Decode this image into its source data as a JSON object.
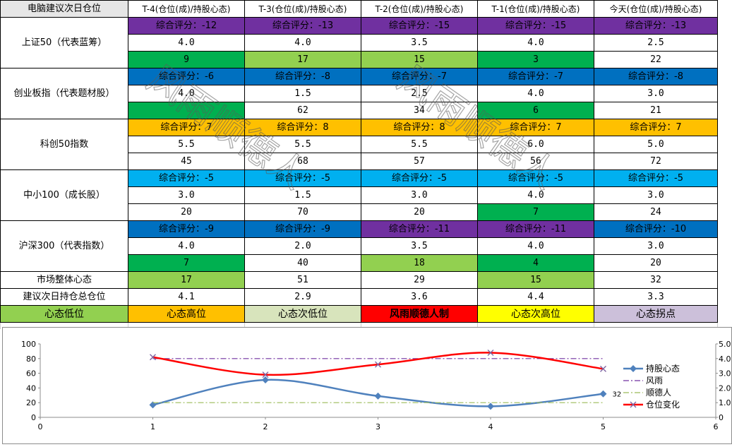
{
  "colors": {
    "purple": "#7030a0",
    "darkblue": "#0070c0",
    "orange": "#ffc000",
    "lightblue": "#00b0f0",
    "green": "#00b050",
    "lightgreen": "#92d050",
    "red": "#ff0000",
    "yellow": "#ffff00",
    "pale_green": "#d8e4bc",
    "lavender": "#ccc0da"
  },
  "header": {
    "corner": "电脑建议次日仓位",
    "columns": [
      "T-4(仓位(成)/持股心态)",
      "T-3(仓位(成)/持股心态)",
      "T-2(仓位(成)/持股心态)",
      "T-1(仓位(成)/持股心态)",
      "今天(仓位(成)/持股心态)"
    ]
  },
  "indices": [
    {
      "name": "上证50（代表蓝筹）",
      "score_color": "purple",
      "scores": [
        "综合评分：-12",
        "综合评分：-13",
        "综合评分：-15",
        "综合评分：-15",
        "综合评分：-13"
      ],
      "positions": [
        "4.0",
        "4.0",
        "3.5",
        "4.0",
        "2.5"
      ],
      "moods": [
        "9",
        "17",
        "15",
        "3",
        "22"
      ],
      "mood_colors": [
        "green",
        "lightgreen",
        "lightgreen",
        "green",
        "white"
      ]
    },
    {
      "name": "创业板指（代表题材股）",
      "score_color": "darkblue",
      "scores": [
        "综合评分：-6",
        "综合评分：-8",
        "综合评分：-7",
        "综合评分：-7",
        "综合评分：-8"
      ],
      "positions": [
        "4.0",
        "1.5",
        "2.5",
        "4.0",
        "3.0"
      ],
      "moods": [
        "",
        "62",
        "34",
        "6",
        "21"
      ],
      "mood_colors": [
        "green",
        "white",
        "white",
        "green",
        "white"
      ]
    },
    {
      "name": "科创50指数",
      "score_color": "orange",
      "scores": [
        "综合评分：7",
        "综合评分：8",
        "综合评分：8",
        "综合评分：7",
        "综合评分：7"
      ],
      "positions": [
        "5.5",
        "5.5",
        "5.5",
        "6.0",
        "5.0"
      ],
      "moods": [
        "45",
        "68",
        "57",
        "56",
        "72"
      ],
      "mood_colors": [
        "white",
        "white",
        "white",
        "white",
        "white"
      ]
    },
    {
      "name": "中小100（成长股）",
      "score_color": "lightblue",
      "scores": [
        "综合评分：-5",
        "综合评分：-5",
        "综合评分：-5",
        "综合评分：-5",
        "综合评分：-5"
      ],
      "positions": [
        "3.0",
        "1.5",
        "3.0",
        "4.0",
        "3.0"
      ],
      "moods": [
        "20",
        "70",
        "20",
        "7",
        "24"
      ],
      "mood_colors": [
        "white",
        "white",
        "white",
        "green",
        "white"
      ]
    },
    {
      "name": "沪深300（代表指数）",
      "score_color": "darkblue",
      "scores": [
        "综合评分：-9",
        "综合评分：-9",
        "综合评分：-11",
        "综合评分：-11",
        "综合评分：-10"
      ],
      "score_colors": [
        "darkblue",
        "darkblue",
        "purple",
        "purple",
        "darkblue"
      ],
      "positions": [
        "4.0",
        "2.0",
        "3.5",
        "4.0",
        "3.0"
      ],
      "moods": [
        "7",
        "40",
        "18",
        "4",
        "20"
      ],
      "mood_colors": [
        "green",
        "white",
        "lightgreen",
        "green",
        "white"
      ]
    }
  ],
  "market": {
    "label": "市场整体心态",
    "values": [
      "17",
      "51",
      "29",
      "15",
      "32"
    ],
    "colors": [
      "lightgreen",
      "white",
      "white",
      "lightgreen",
      "white"
    ]
  },
  "suggest": {
    "label": "建议次日持仓总仓位",
    "values": [
      "4.1",
      "2.9",
      "3.6",
      "4.4",
      "3.3"
    ]
  },
  "legend_row": [
    {
      "text": "心态低位",
      "color": "lightgreen",
      "bold": false
    },
    {
      "text": "心态高位",
      "color": "orange",
      "bold": false
    },
    {
      "text": "心态次低位",
      "color": "pale_green",
      "bold": false
    },
    {
      "text": "风雨顺德人制",
      "color": "red",
      "bold": true
    },
    {
      "text": "心态次高位",
      "color": "yellow",
      "bold": false
    },
    {
      "text": "心态拐点",
      "color": "lavender",
      "bold": false
    }
  ],
  "watermark": {
    "left": "风雨顺德人",
    "right": "风雨顺德人"
  },
  "chart_data": {
    "type": "line",
    "x": [
      1,
      2,
      3,
      4,
      5
    ],
    "xlim": [
      0,
      6
    ],
    "x_ticks": [
      "0",
      "1",
      "2",
      "3",
      "4",
      "5",
      "6"
    ],
    "ylim": [
      0,
      100
    ],
    "y_ticks": [
      "0",
      "20",
      "40",
      "60",
      "80",
      "100"
    ],
    "y2lim": [
      0,
      5
    ],
    "y2_ticks": [
      "0",
      "1.0",
      "2.0",
      "3.0",
      "4.0",
      "5.0"
    ],
    "grid": false,
    "legend_position": "right",
    "series": [
      {
        "name": "持股心态",
        "axis": "left",
        "values": [
          17,
          51,
          29,
          15,
          32
        ],
        "color": "#4f81bd",
        "style": "smooth-diamond"
      },
      {
        "name": "风雨",
        "axis": "left",
        "values": [
          80,
          80,
          80,
          80,
          80
        ],
        "color": "#7030a0",
        "style": "dashdot"
      },
      {
        "name": "顺德人",
        "axis": "left",
        "values": [
          20,
          20,
          20,
          20,
          20
        ],
        "color": "#9bbb59",
        "style": "dashdot"
      },
      {
        "name": "仓位变化",
        "axis": "right",
        "values": [
          4.1,
          2.9,
          3.6,
          4.4,
          3.3
        ],
        "color": "#ff0000",
        "style": "smooth-x"
      }
    ],
    "annotations": [
      {
        "text": "32",
        "x": 5,
        "series": "持股心态"
      }
    ]
  }
}
